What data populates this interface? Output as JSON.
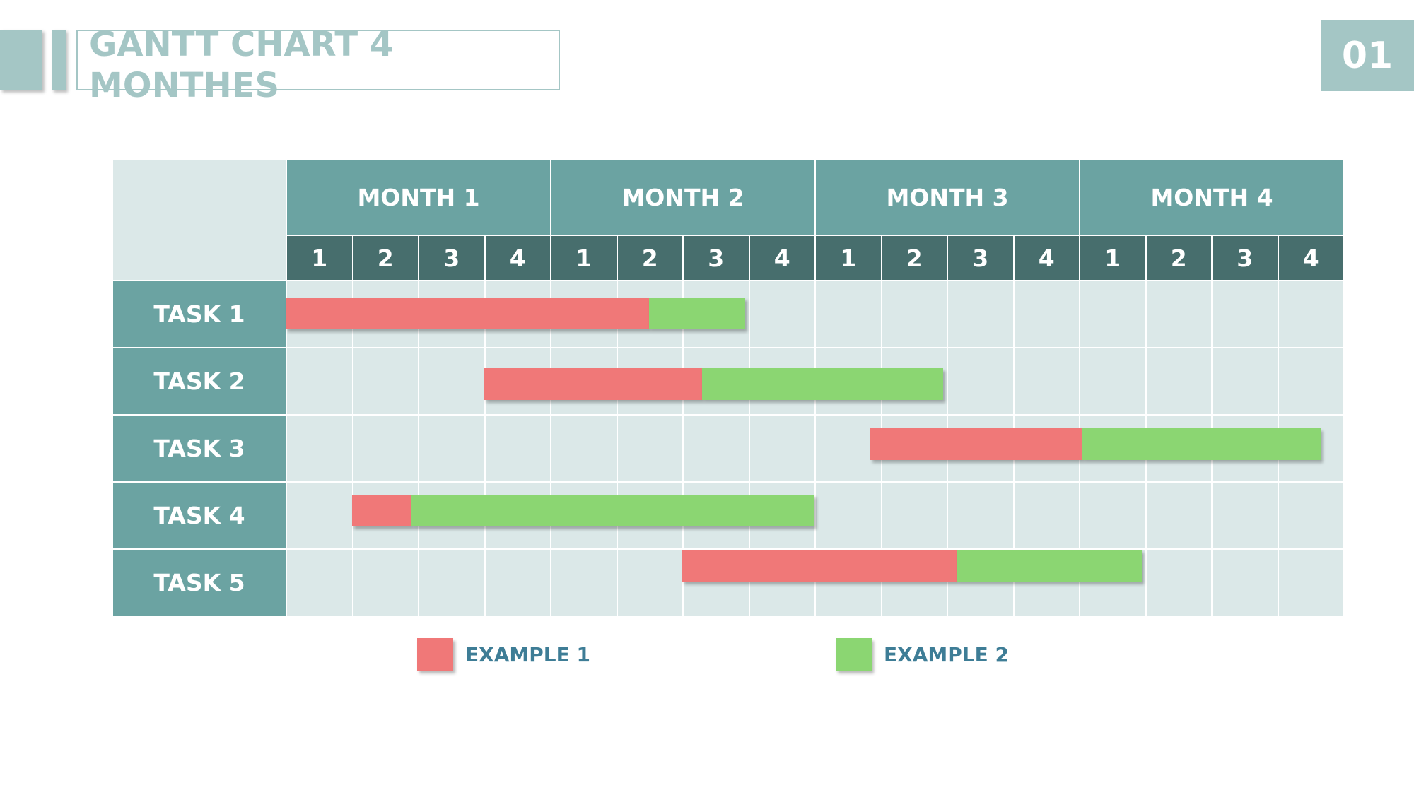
{
  "title": "GANTT CHART  4 MONTHES",
  "page_number": "01",
  "colors": {
    "example1": "#f07878",
    "example2": "#8bd672",
    "header": "#6ba3a2",
    "subheader": "#476e6d",
    "cell": "#dbe8e8",
    "accent": "#a4c6c5",
    "legend_text": "#3e7d96"
  },
  "chart_data": {
    "type": "bar",
    "months": [
      "MONTH 1",
      "MONTH 2",
      "MONTH 3",
      "MONTH 4"
    ],
    "weeks": [
      "1",
      "2",
      "3",
      "4",
      "1",
      "2",
      "3",
      "4",
      "1",
      "2",
      "3",
      "4",
      "1",
      "2",
      "3",
      "4"
    ],
    "tasks": [
      {
        "label": "TASK 1",
        "start": 0.0,
        "split": 5.5,
        "end": 6.95
      },
      {
        "label": "TASK 2",
        "start": 3.0,
        "split": 6.3,
        "end": 9.95
      },
      {
        "label": "TASK 3",
        "start": 8.85,
        "split": 12.05,
        "end": 16.0
      },
      {
        "label": "TASK 4",
        "start": 1.0,
        "split": 1.9,
        "end": 8.0
      },
      {
        "label": "TASK 5",
        "start": 6.0,
        "split": 10.15,
        "end": 12.95
      }
    ],
    "series": [
      {
        "name": "EXAMPLE 1",
        "segment": "start-split"
      },
      {
        "name": "EXAMPLE 2",
        "segment": "split-end"
      }
    ],
    "legend": [
      "EXAMPLE 1",
      "EXAMPLE 2"
    ],
    "legend_position": "bottom",
    "grid": true
  }
}
